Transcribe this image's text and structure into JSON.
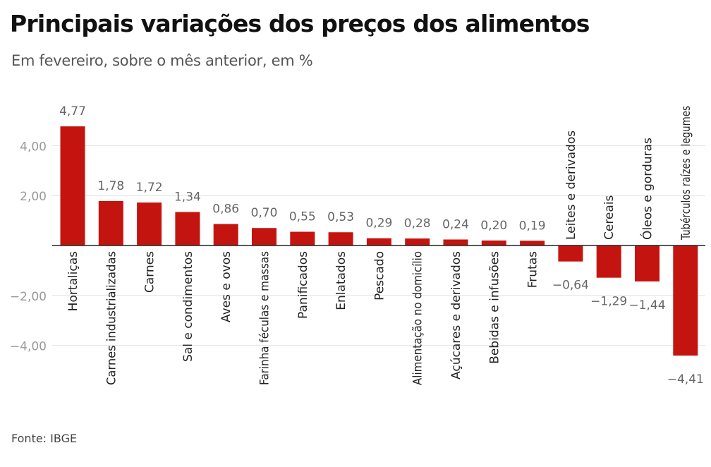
{
  "title": "Principais variações dos preços dos alimentos",
  "subtitle": "Em fevereiro, sobre o mês anterior, em %",
  "source": "Fonte: IBGE",
  "colors": {
    "bar": "#c4140f",
    "grid": "#e2e2e2",
    "axis": "#222222",
    "tick": "#999999",
    "value": "#666666",
    "label": "#222222"
  },
  "chart_data": {
    "type": "bar",
    "categories": [
      "Hortaliças",
      "Carnes industrializadas",
      "Carnes",
      "Sal e condimentos",
      "Aves e ovos",
      "Farinha féculas e massas",
      "Panificados",
      "Enlatados",
      "Pescado",
      "Alimentação no domicílio",
      "Açúcares e derivados",
      "Bebidas e infusões",
      "Frutas",
      "Leites e derivados",
      "Cereais",
      "Óleos e gorduras",
      "Tubérculos raízes e legumes"
    ],
    "values": [
      4.77,
      1.78,
      1.72,
      1.34,
      0.86,
      0.7,
      0.55,
      0.53,
      0.29,
      0.28,
      0.24,
      0.2,
      0.19,
      -0.64,
      -1.29,
      -1.44,
      -4.41
    ],
    "value_labels": [
      "4,77",
      "1,78",
      "1,72",
      "1,34",
      "0,86",
      "0,70",
      "0,55",
      "0,53",
      "0,29",
      "0,28",
      "0,24",
      "0,20",
      "0,19",
      "−0,64",
      "−1,29",
      "−1,44",
      "−4,41"
    ],
    "yticks": [
      -4,
      -2,
      0,
      2,
      4
    ],
    "ytick_labels": [
      "−4,00",
      "−2,00",
      "",
      "2,00",
      "4,00"
    ],
    "ylim": [
      -4.8,
      6.0
    ],
    "xlabel": "",
    "ylabel": "",
    "grid": true
  }
}
